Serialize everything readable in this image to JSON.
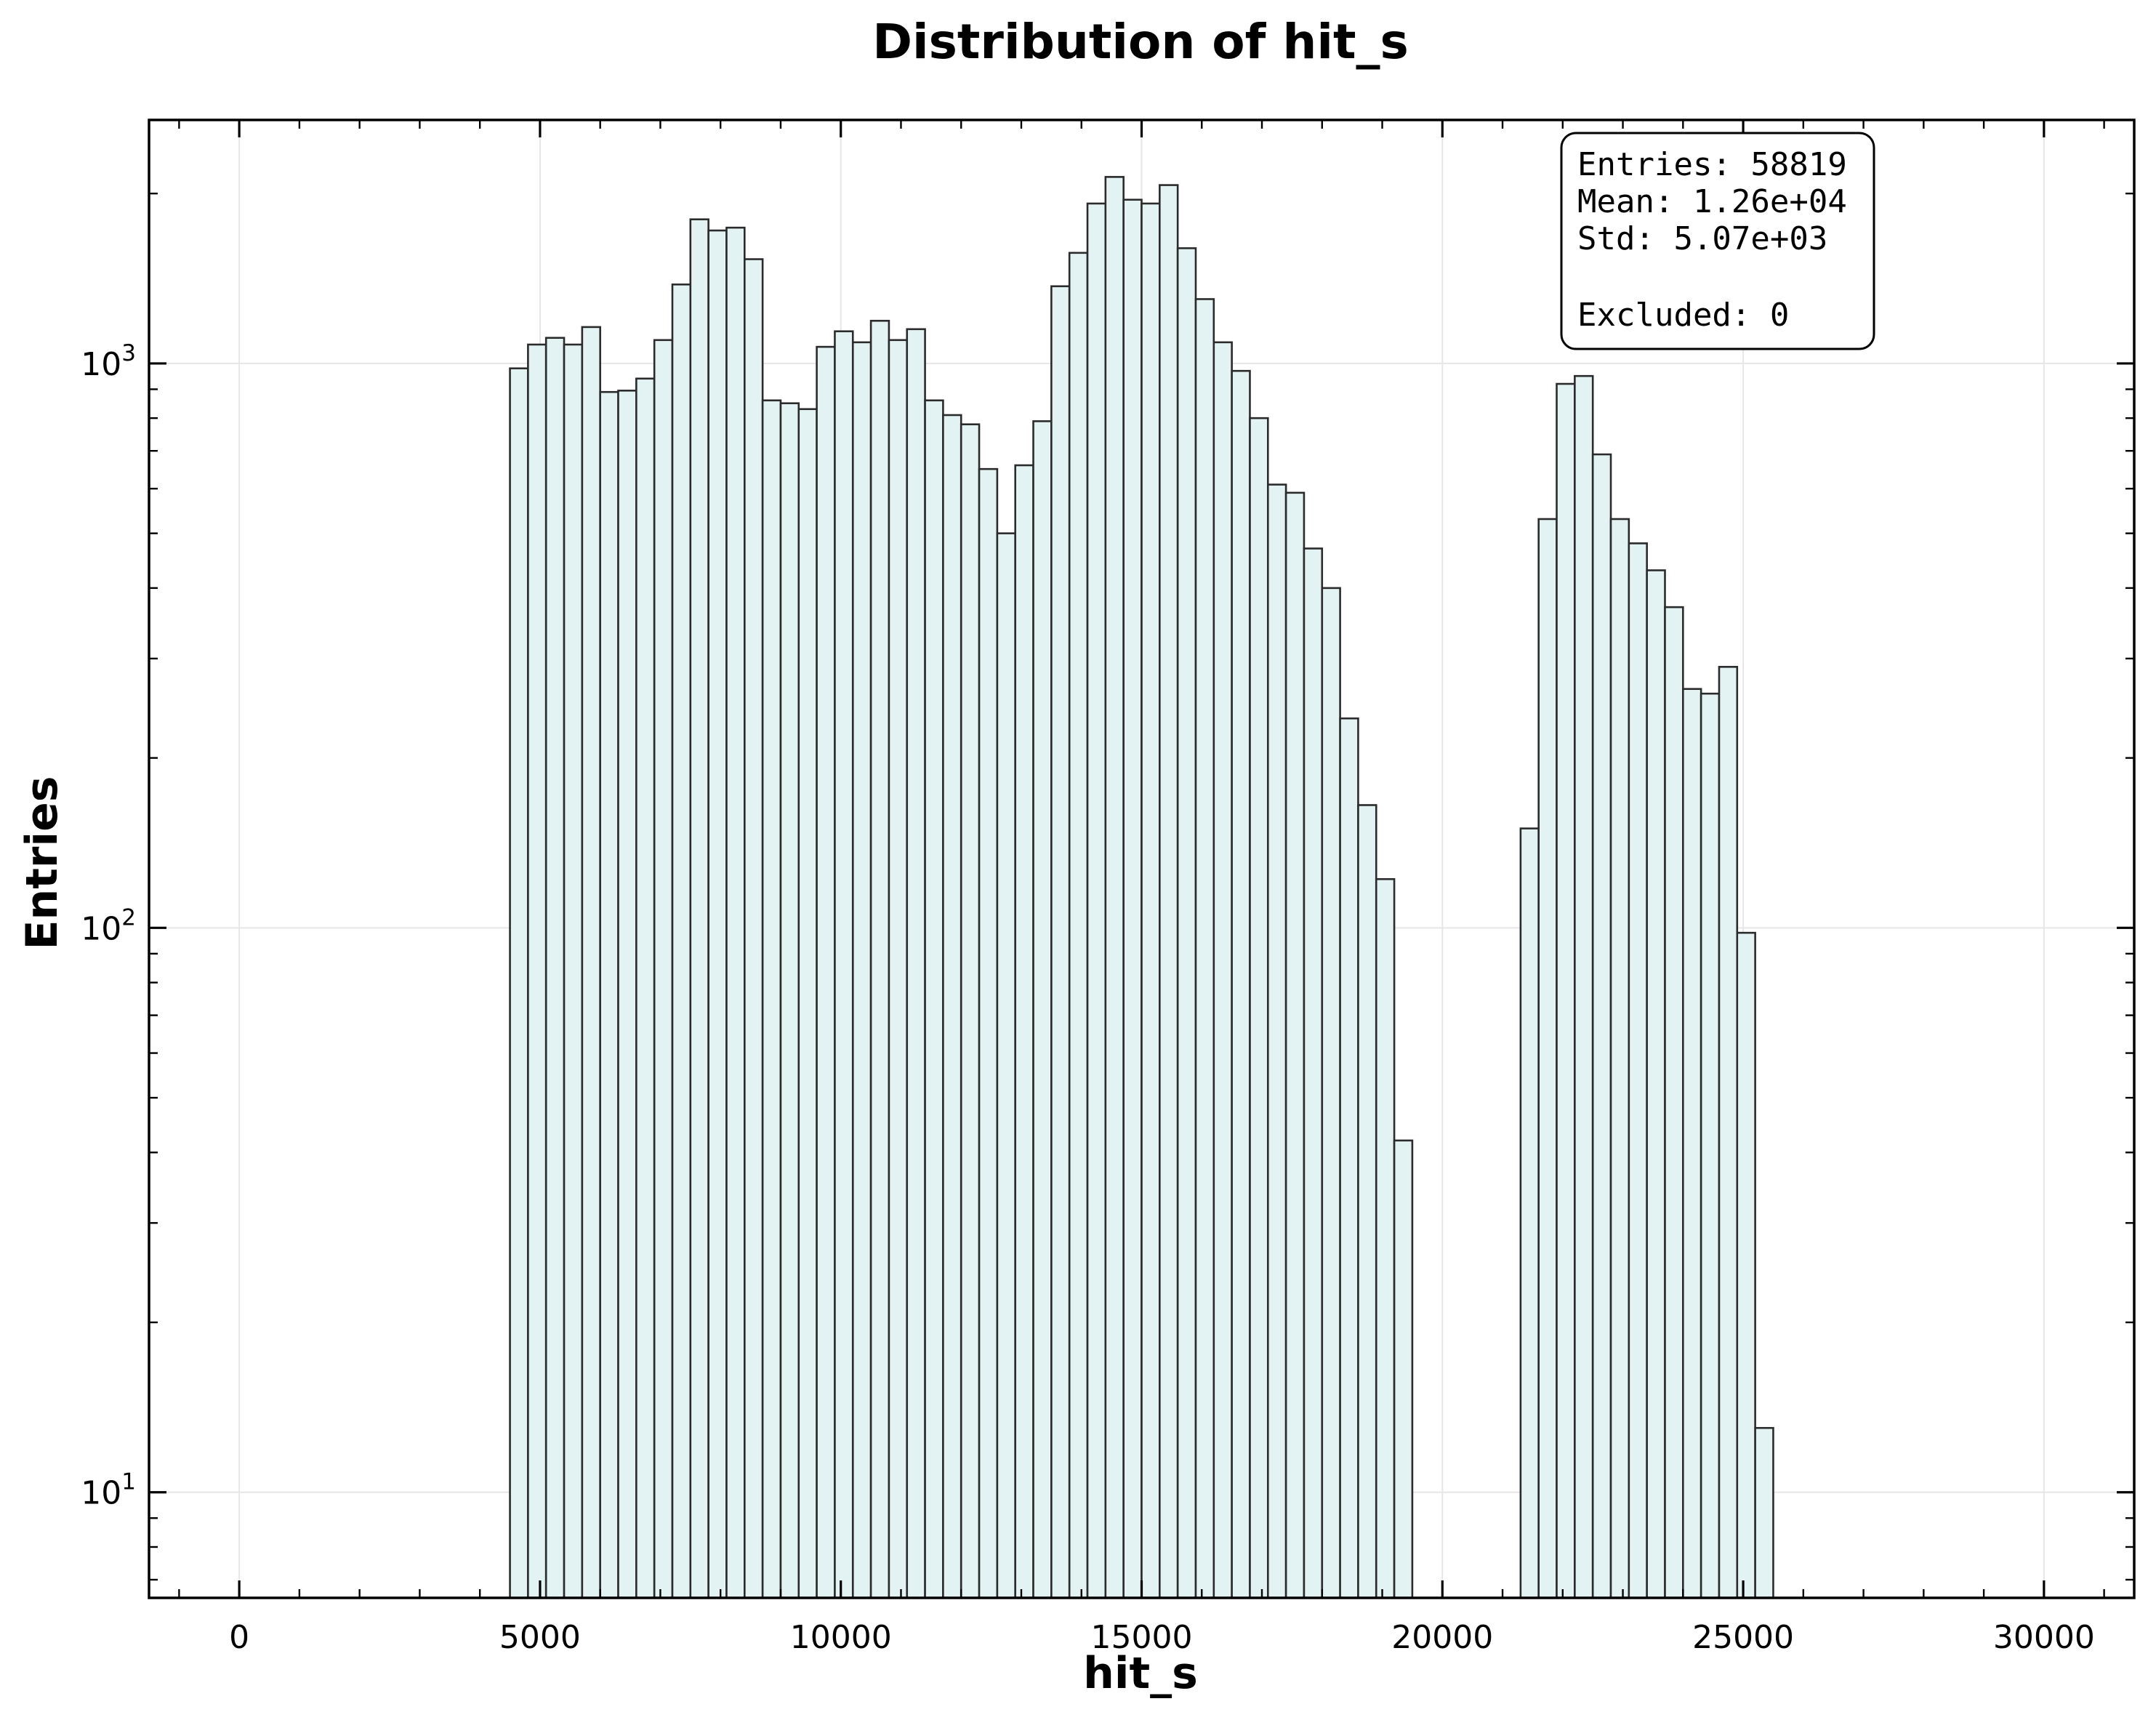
{
  "chart_data": {
    "type": "bar",
    "title": "Distribution of hit_s",
    "xlabel": "hit_s",
    "ylabel": "Entries",
    "yscale": "log",
    "xlim": [
      -1500,
      31500
    ],
    "ylim": [
      6.5,
      2700
    ],
    "grid": true,
    "bin_width": 300,
    "x_ticks": [
      0,
      5000,
      10000,
      15000,
      20000,
      25000,
      30000
    ],
    "x_tick_labels": [
      "0",
      "5000",
      "10000",
      "15000",
      "20000",
      "25000",
      "30000"
    ],
    "y_ticks": [
      10,
      100,
      1000
    ],
    "y_tick_labels": [
      {
        "base": "10",
        "exp": "1"
      },
      {
        "base": "10",
        "exp": "2"
      },
      {
        "base": "10",
        "exp": "3"
      }
    ],
    "bins": [
      {
        "x": 4500,
        "value": 980
      },
      {
        "x": 4800,
        "value": 1080
      },
      {
        "x": 5100,
        "value": 1110
      },
      {
        "x": 5400,
        "value": 1080
      },
      {
        "x": 5700,
        "value": 1160
      },
      {
        "x": 6000,
        "value": 890
      },
      {
        "x": 6300,
        "value": 895
      },
      {
        "x": 6600,
        "value": 940
      },
      {
        "x": 6900,
        "value": 1100
      },
      {
        "x": 7200,
        "value": 1380
      },
      {
        "x": 7500,
        "value": 1800
      },
      {
        "x": 7800,
        "value": 1720
      },
      {
        "x": 8100,
        "value": 1740
      },
      {
        "x": 8400,
        "value": 1530
      },
      {
        "x": 8700,
        "value": 860
      },
      {
        "x": 9000,
        "value": 850
      },
      {
        "x": 9300,
        "value": 830
      },
      {
        "x": 9600,
        "value": 1070
      },
      {
        "x": 9900,
        "value": 1140
      },
      {
        "x": 10200,
        "value": 1090
      },
      {
        "x": 10500,
        "value": 1190
      },
      {
        "x": 10800,
        "value": 1100
      },
      {
        "x": 11100,
        "value": 1150
      },
      {
        "x": 11400,
        "value": 860
      },
      {
        "x": 11700,
        "value": 810
      },
      {
        "x": 12000,
        "value": 780
      },
      {
        "x": 12300,
        "value": 650
      },
      {
        "x": 12600,
        "value": 500
      },
      {
        "x": 12900,
        "value": 660
      },
      {
        "x": 13200,
        "value": 790
      },
      {
        "x": 13500,
        "value": 1370
      },
      {
        "x": 13800,
        "value": 1570
      },
      {
        "x": 14100,
        "value": 1920
      },
      {
        "x": 14400,
        "value": 2140
      },
      {
        "x": 14700,
        "value": 1950
      },
      {
        "x": 15000,
        "value": 1920
      },
      {
        "x": 15300,
        "value": 2070
      },
      {
        "x": 15600,
        "value": 1600
      },
      {
        "x": 15900,
        "value": 1300
      },
      {
        "x": 16200,
        "value": 1090
      },
      {
        "x": 16500,
        "value": 970
      },
      {
        "x": 16800,
        "value": 800
      },
      {
        "x": 17100,
        "value": 610
      },
      {
        "x": 17400,
        "value": 590
      },
      {
        "x": 17700,
        "value": 470
      },
      {
        "x": 18000,
        "value": 400
      },
      {
        "x": 18300,
        "value": 235
      },
      {
        "x": 18600,
        "value": 165
      },
      {
        "x": 18900,
        "value": 122
      },
      {
        "x": 19200,
        "value": 42
      },
      {
        "x": 21300,
        "value": 150
      },
      {
        "x": 21600,
        "value": 530
      },
      {
        "x": 21900,
        "value": 920
      },
      {
        "x": 22200,
        "value": 950
      },
      {
        "x": 22500,
        "value": 690
      },
      {
        "x": 22800,
        "value": 530
      },
      {
        "x": 23100,
        "value": 480
      },
      {
        "x": 23400,
        "value": 430
      },
      {
        "x": 23700,
        "value": 370
      },
      {
        "x": 24000,
        "value": 265
      },
      {
        "x": 24300,
        "value": 260
      },
      {
        "x": 24600,
        "value": 290
      },
      {
        "x": 24900,
        "value": 98
      },
      {
        "x": 25200,
        "value": 13
      }
    ],
    "stats_box": {
      "lines": [
        "Entries: 58819",
        "Mean: 1.26e+04",
        "Std: 5.07e+03",
        "",
        "Excluded: 0"
      ],
      "placement": "top-right"
    }
  }
}
